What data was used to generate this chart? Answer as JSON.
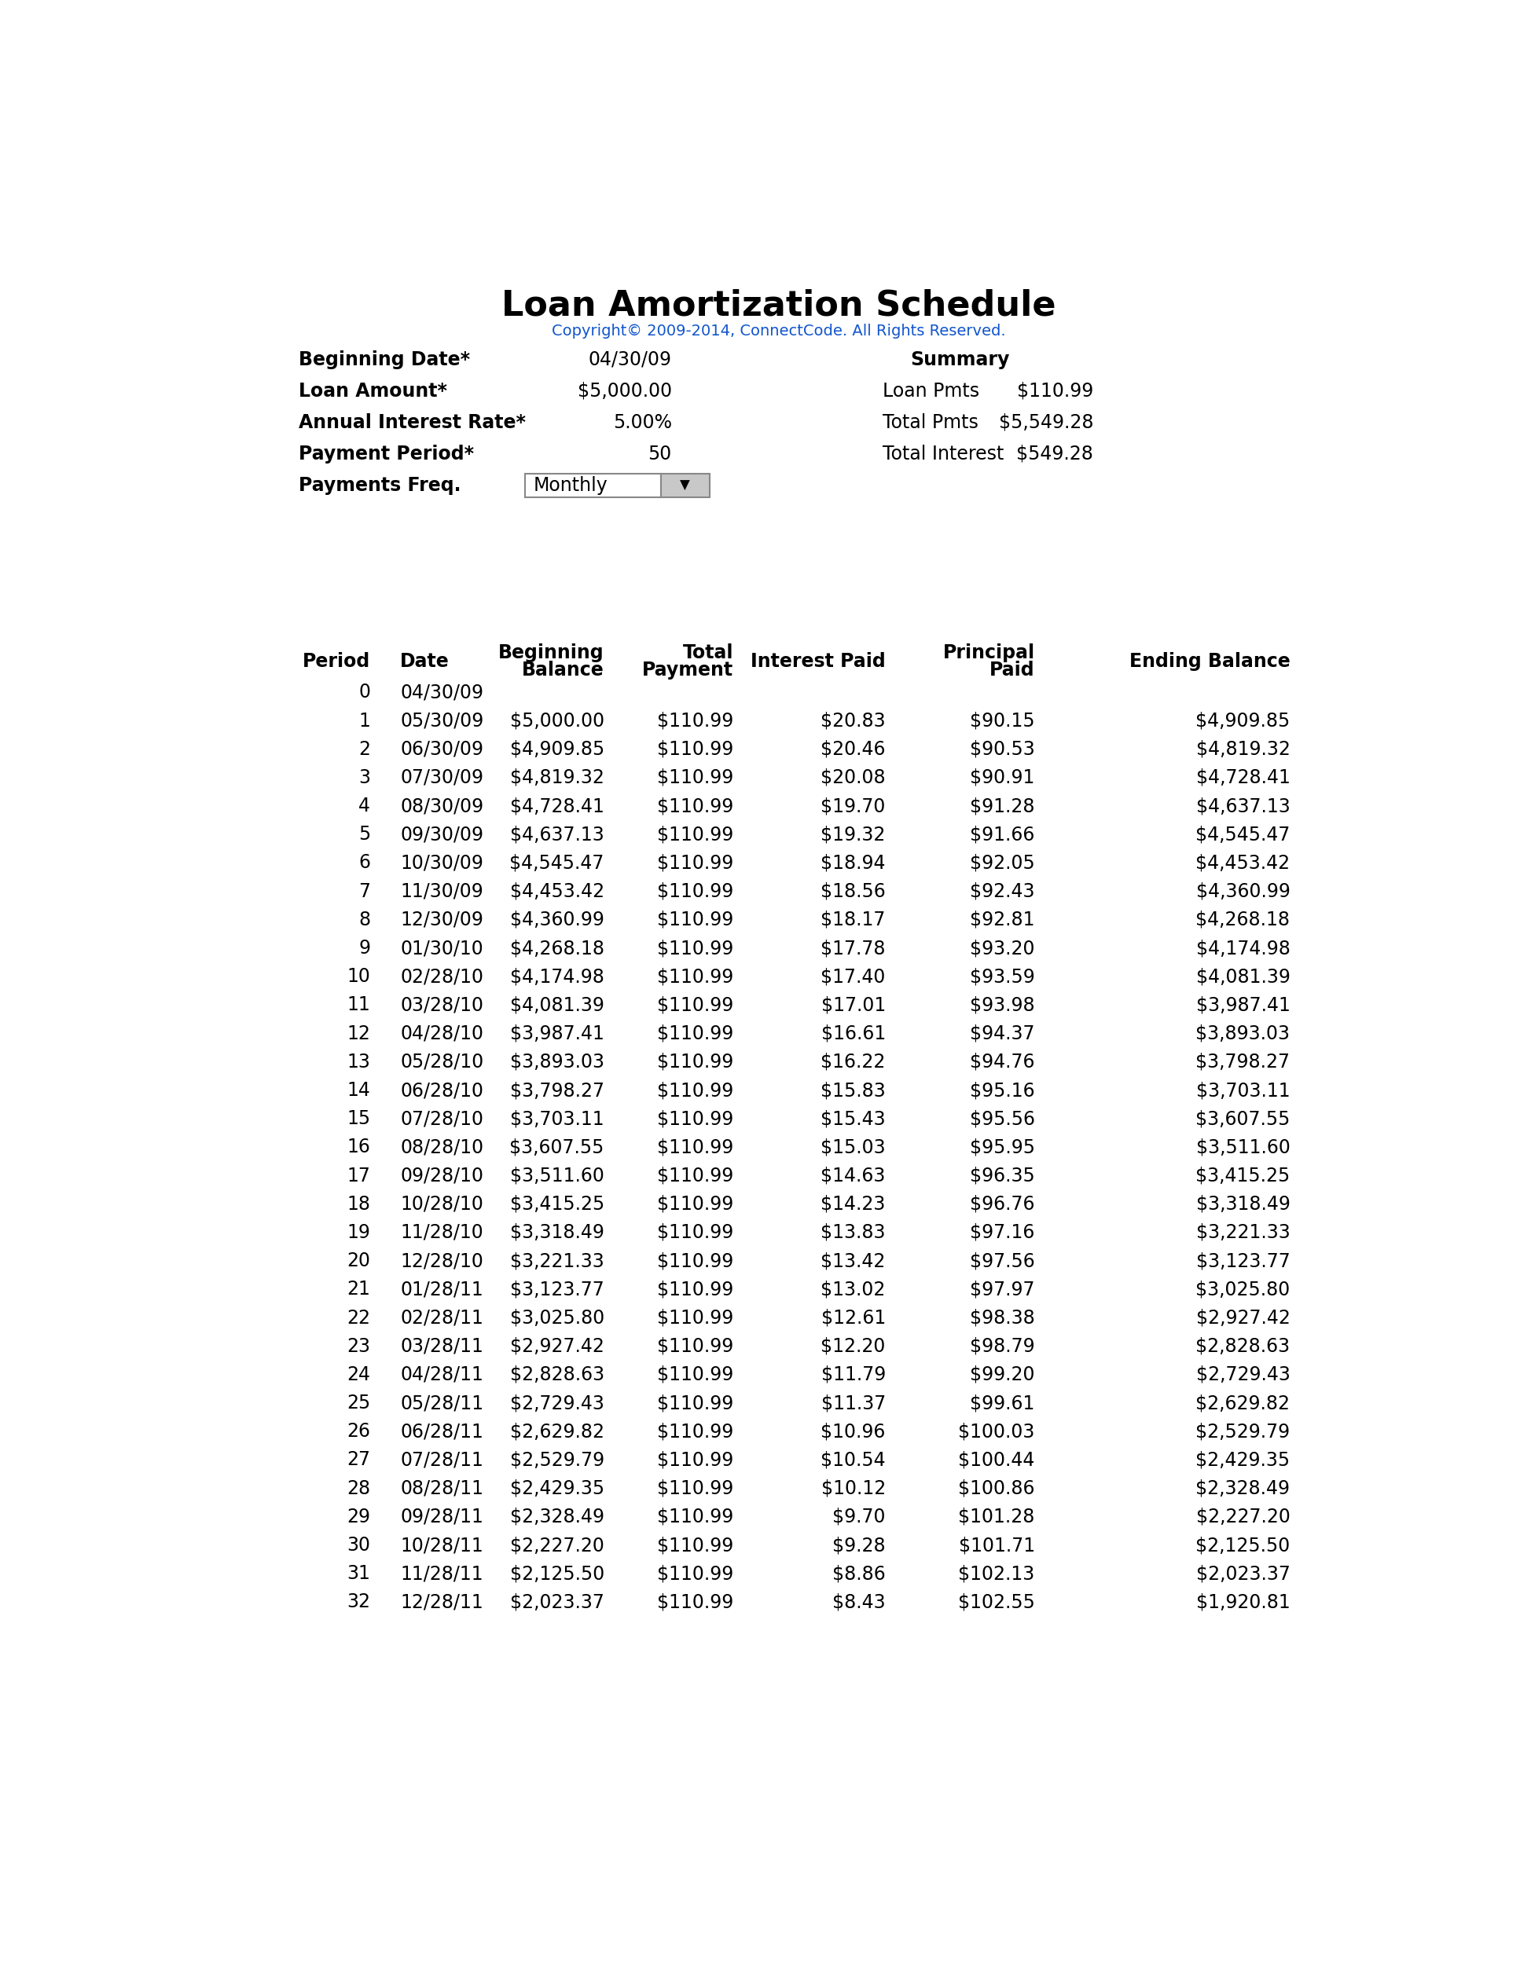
{
  "title": "Loan Amortization Schedule",
  "copyright": "Copyright© 2009-2014, ConnectCode. All Rights Reserved.",
  "input_labels": [
    "Beginning Date*",
    "Loan Amount*",
    "Annual Interest Rate*",
    "Payment Period*",
    "Payments Freq."
  ],
  "input_values": [
    "04/30/09",
    "$5,000.00",
    "5.00%",
    "50",
    "Monthly"
  ],
  "summary_title": "Summary",
  "summary_labels": [
    "Loan Pmts",
    "Total Pmts",
    "Total Interest"
  ],
  "summary_values": [
    "$110.99",
    "$5,549.28",
    "$549.28"
  ],
  "col_headers": [
    "Period",
    "Date",
    "Beginning\nBalance",
    "Total\nPayment",
    "Interest Paid",
    "Principal\nPaid",
    "Ending Balance"
  ],
  "rows": [
    [
      "0",
      "04/30/09",
      "",
      "",
      "",
      "",
      ""
    ],
    [
      "1",
      "05/30/09",
      "$5,000.00",
      "$110.99",
      "$20.83",
      "$90.15",
      "$4,909.85"
    ],
    [
      "2",
      "06/30/09",
      "$4,909.85",
      "$110.99",
      "$20.46",
      "$90.53",
      "$4,819.32"
    ],
    [
      "3",
      "07/30/09",
      "$4,819.32",
      "$110.99",
      "$20.08",
      "$90.91",
      "$4,728.41"
    ],
    [
      "4",
      "08/30/09",
      "$4,728.41",
      "$110.99",
      "$19.70",
      "$91.28",
      "$4,637.13"
    ],
    [
      "5",
      "09/30/09",
      "$4,637.13",
      "$110.99",
      "$19.32",
      "$91.66",
      "$4,545.47"
    ],
    [
      "6",
      "10/30/09",
      "$4,545.47",
      "$110.99",
      "$18.94",
      "$92.05",
      "$4,453.42"
    ],
    [
      "7",
      "11/30/09",
      "$4,453.42",
      "$110.99",
      "$18.56",
      "$92.43",
      "$4,360.99"
    ],
    [
      "8",
      "12/30/09",
      "$4,360.99",
      "$110.99",
      "$18.17",
      "$92.81",
      "$4,268.18"
    ],
    [
      "9",
      "01/30/10",
      "$4,268.18",
      "$110.99",
      "$17.78",
      "$93.20",
      "$4,174.98"
    ],
    [
      "10",
      "02/28/10",
      "$4,174.98",
      "$110.99",
      "$17.40",
      "$93.59",
      "$4,081.39"
    ],
    [
      "11",
      "03/28/10",
      "$4,081.39",
      "$110.99",
      "$17.01",
      "$93.98",
      "$3,987.41"
    ],
    [
      "12",
      "04/28/10",
      "$3,987.41",
      "$110.99",
      "$16.61",
      "$94.37",
      "$3,893.03"
    ],
    [
      "13",
      "05/28/10",
      "$3,893.03",
      "$110.99",
      "$16.22",
      "$94.76",
      "$3,798.27"
    ],
    [
      "14",
      "06/28/10",
      "$3,798.27",
      "$110.99",
      "$15.83",
      "$95.16",
      "$3,703.11"
    ],
    [
      "15",
      "07/28/10",
      "$3,703.11",
      "$110.99",
      "$15.43",
      "$95.56",
      "$3,607.55"
    ],
    [
      "16",
      "08/28/10",
      "$3,607.55",
      "$110.99",
      "$15.03",
      "$95.95",
      "$3,511.60"
    ],
    [
      "17",
      "09/28/10",
      "$3,511.60",
      "$110.99",
      "$14.63",
      "$96.35",
      "$3,415.25"
    ],
    [
      "18",
      "10/28/10",
      "$3,415.25",
      "$110.99",
      "$14.23",
      "$96.76",
      "$3,318.49"
    ],
    [
      "19",
      "11/28/10",
      "$3,318.49",
      "$110.99",
      "$13.83",
      "$97.16",
      "$3,221.33"
    ],
    [
      "20",
      "12/28/10",
      "$3,221.33",
      "$110.99",
      "$13.42",
      "$97.56",
      "$3,123.77"
    ],
    [
      "21",
      "01/28/11",
      "$3,123.77",
      "$110.99",
      "$13.02",
      "$97.97",
      "$3,025.80"
    ],
    [
      "22",
      "02/28/11",
      "$3,025.80",
      "$110.99",
      "$12.61",
      "$98.38",
      "$2,927.42"
    ],
    [
      "23",
      "03/28/11",
      "$2,927.42",
      "$110.99",
      "$12.20",
      "$98.79",
      "$2,828.63"
    ],
    [
      "24",
      "04/28/11",
      "$2,828.63",
      "$110.99",
      "$11.79",
      "$99.20",
      "$2,729.43"
    ],
    [
      "25",
      "05/28/11",
      "$2,729.43",
      "$110.99",
      "$11.37",
      "$99.61",
      "$2,629.82"
    ],
    [
      "26",
      "06/28/11",
      "$2,629.82",
      "$110.99",
      "$10.96",
      "$100.03",
      "$2,529.79"
    ],
    [
      "27",
      "07/28/11",
      "$2,529.79",
      "$110.99",
      "$10.54",
      "$100.44",
      "$2,429.35"
    ],
    [
      "28",
      "08/28/11",
      "$2,429.35",
      "$110.99",
      "$10.12",
      "$100.86",
      "$2,328.49"
    ],
    [
      "29",
      "09/28/11",
      "$2,328.49",
      "$110.99",
      "$9.70",
      "$101.28",
      "$2,227.20"
    ],
    [
      "30",
      "10/28/11",
      "$2,227.20",
      "$110.99",
      "$9.28",
      "$101.71",
      "$2,125.50"
    ],
    [
      "31",
      "11/28/11",
      "$2,125.50",
      "$110.99",
      "$8.86",
      "$102.13",
      "$2,023.37"
    ],
    [
      "32",
      "12/28/11",
      "$2,023.37",
      "$110.99",
      "$8.43",
      "$102.55",
      "$1,920.81"
    ]
  ],
  "bg_color": "#ffffff",
  "text_color": "#000000",
  "copyright_color": "#1155CC",
  "title_fontsize": 32,
  "header_fontsize": 17,
  "data_fontsize": 17,
  "input_fontsize": 17,
  "summary_fontsize": 17,
  "copyright_fontsize": 14
}
